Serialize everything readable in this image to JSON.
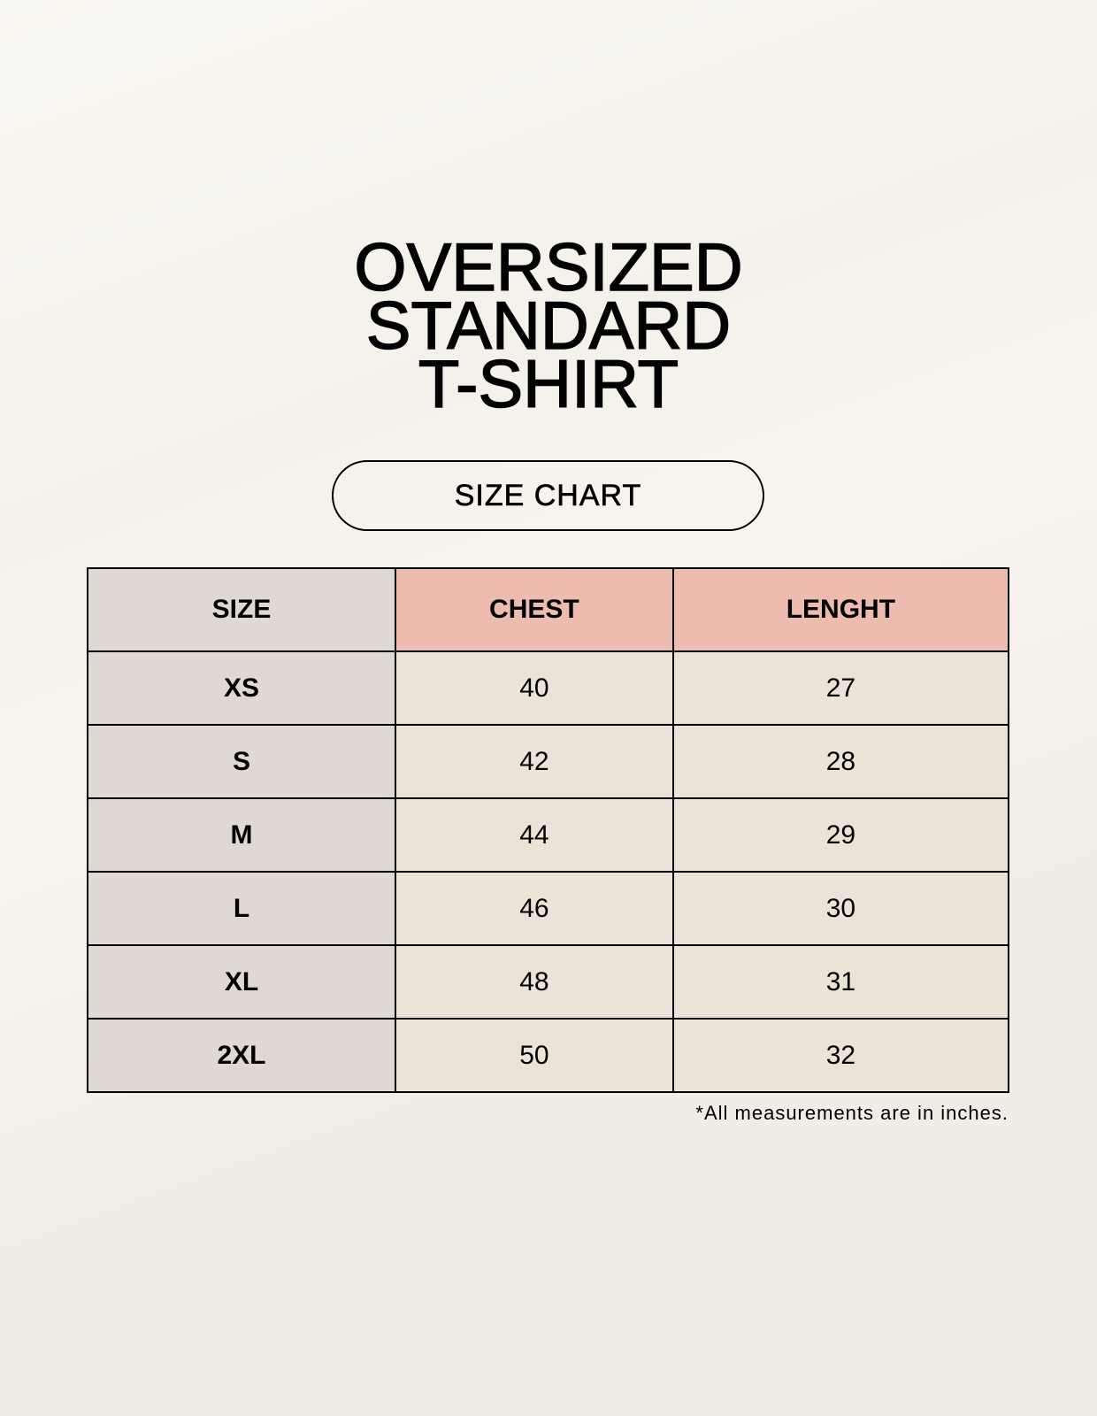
{
  "title_lines": [
    "OVERSIZED",
    "STANDARD",
    "T-SHIRT"
  ],
  "badge": "SIZE CHART",
  "table": {
    "headers": [
      "SIZE",
      "CHEST",
      "LENGHT"
    ],
    "rows": [
      [
        "XS",
        "40",
        "27"
      ],
      [
        "S",
        "42",
        "28"
      ],
      [
        "M",
        "44",
        "29"
      ],
      [
        "L",
        "46",
        "30"
      ],
      [
        "XL",
        "48",
        "31"
      ],
      [
        "2XL",
        "50",
        "32"
      ]
    ]
  },
  "footnote": "*All measurements are in inches.",
  "colors": {
    "size_column": "#e0d9d3",
    "header_accent": "#edbcae",
    "cell": "#ebe3d8"
  }
}
